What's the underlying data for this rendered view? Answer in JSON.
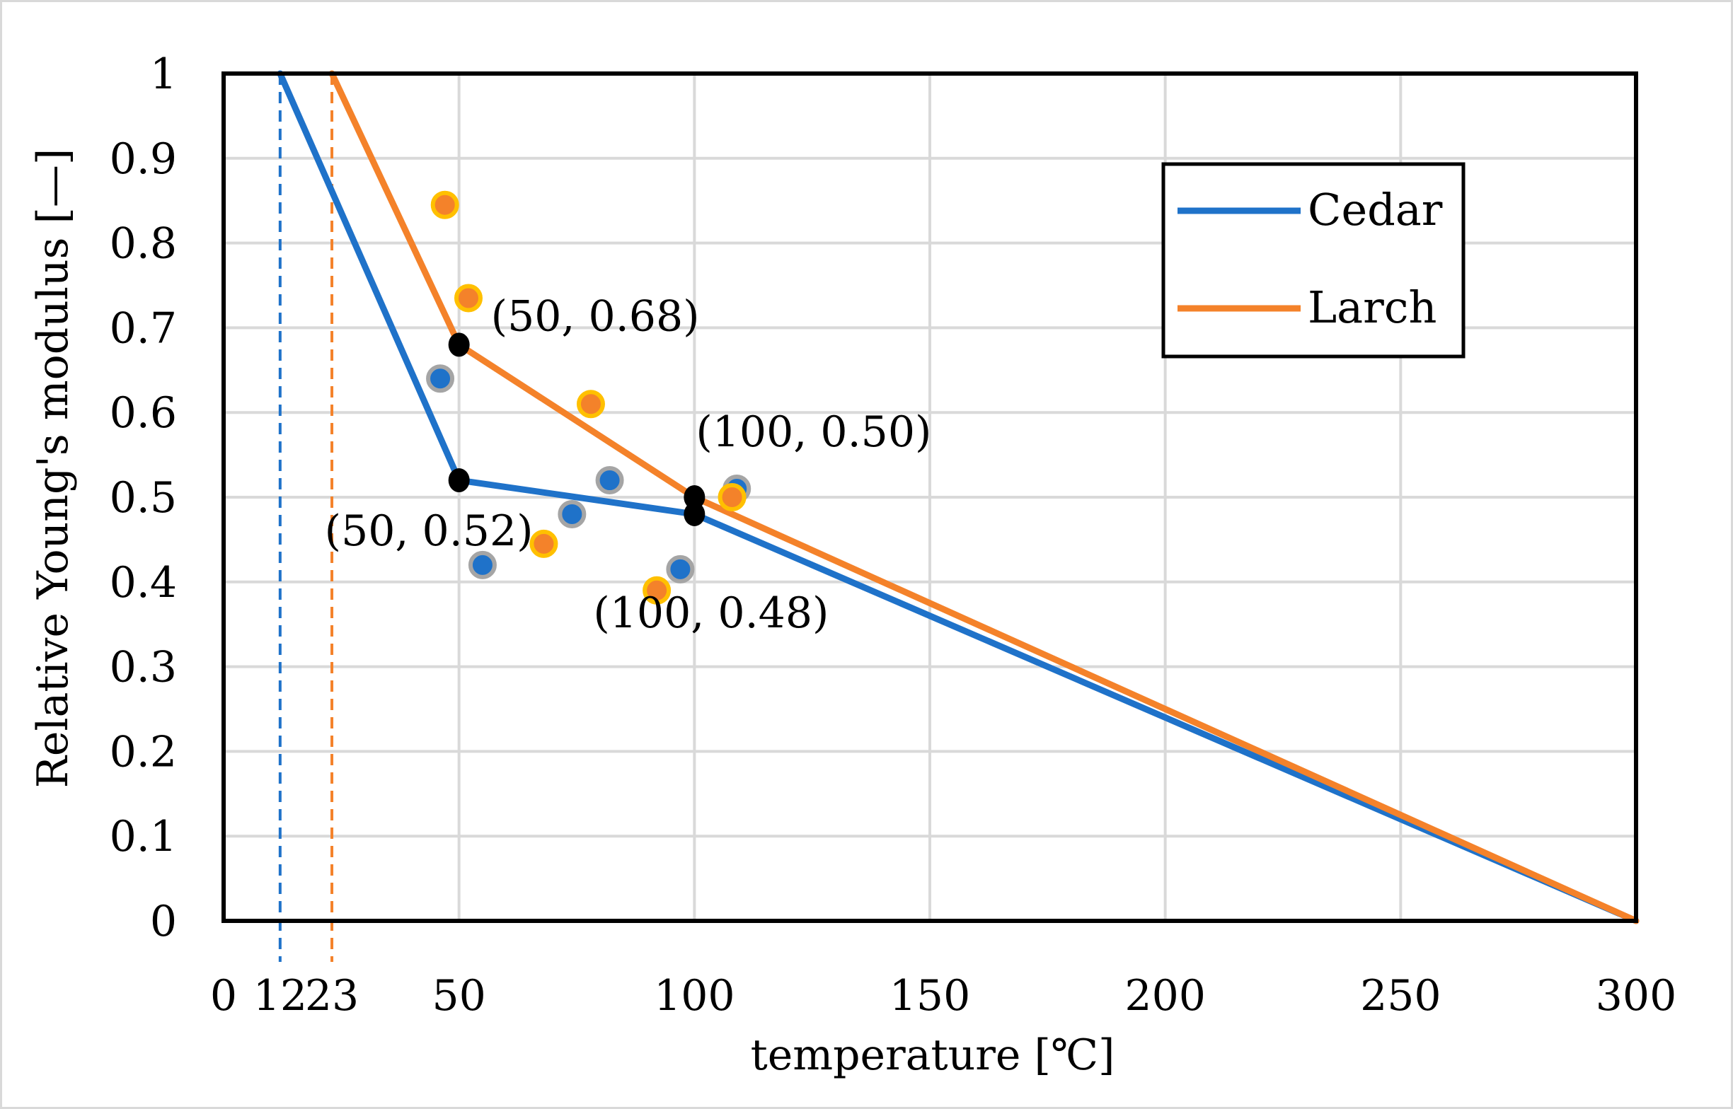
{
  "chart_data": {
    "type": "line",
    "title": "",
    "xlabel": "temperature [℃]",
    "ylabel": "Relative Young's modulus [—]",
    "xlim": [
      0,
      300
    ],
    "ylim": [
      0,
      1
    ],
    "grid": true,
    "legend_position": "top-right",
    "x_ticks": [
      {
        "value": 0,
        "label": "0"
      },
      {
        "value": 50,
        "label": "50"
      },
      {
        "value": 100,
        "label": "100"
      },
      {
        "value": 150,
        "label": "150"
      },
      {
        "value": 200,
        "label": "200"
      },
      {
        "value": 250,
        "label": "250"
      },
      {
        "value": 300,
        "label": "300"
      }
    ],
    "extra_x_ticks": [
      {
        "value": 12,
        "label": "12"
      },
      {
        "value": 23,
        "label": "23"
      }
    ],
    "y_ticks": [
      {
        "value": 0,
        "label": "0"
      },
      {
        "value": 0.1,
        "label": "0.1"
      },
      {
        "value": 0.2,
        "label": "0.2"
      },
      {
        "value": 0.3,
        "label": "0.3"
      },
      {
        "value": 0.4,
        "label": "0.4"
      },
      {
        "value": 0.5,
        "label": "0.5"
      },
      {
        "value": 0.6,
        "label": "0.6"
      },
      {
        "value": 0.7,
        "label": "0.7"
      },
      {
        "value": 0.8,
        "label": "0.8"
      },
      {
        "value": 0.9,
        "label": "0.9"
      },
      {
        "value": 1,
        "label": "1"
      }
    ],
    "series": [
      {
        "name": "Cedar",
        "color": "#1f72c9",
        "reference_temperature": 12,
        "line_points": [
          [
            12,
            1.0
          ],
          [
            50,
            0.52
          ],
          [
            100,
            0.48
          ],
          [
            300,
            0.0
          ]
        ],
        "scatter_points": [
          [
            46,
            0.64
          ],
          [
            55,
            0.42
          ],
          [
            74,
            0.48
          ],
          [
            82,
            0.52
          ],
          [
            97,
            0.415
          ],
          [
            109,
            0.51
          ]
        ]
      },
      {
        "name": "Larch",
        "color": "#f4822a",
        "reference_temperature": 23,
        "line_points": [
          [
            23,
            1.0
          ],
          [
            50,
            0.68
          ],
          [
            100,
            0.5
          ],
          [
            300,
            0.0
          ]
        ],
        "scatter_points": [
          [
            47,
            0.845
          ],
          [
            52,
            0.735
          ],
          [
            68,
            0.445
          ],
          [
            78,
            0.61
          ],
          [
            92,
            0.39
          ],
          [
            108,
            0.5
          ]
        ]
      }
    ],
    "annotations": [
      {
        "text": "(50, 0.68)",
        "x": 50,
        "y": 0.68
      },
      {
        "text": "(50, 0.52)",
        "x": 50,
        "y": 0.52
      },
      {
        "text": "(100, 0.50)",
        "x": 100,
        "y": 0.5
      },
      {
        "text": "(100, 0.48)",
        "x": 100,
        "y": 0.48
      }
    ],
    "legend": [
      {
        "label": "Cedar",
        "color": "#1f72c9"
      },
      {
        "label": "Larch",
        "color": "#f4822a"
      }
    ]
  }
}
